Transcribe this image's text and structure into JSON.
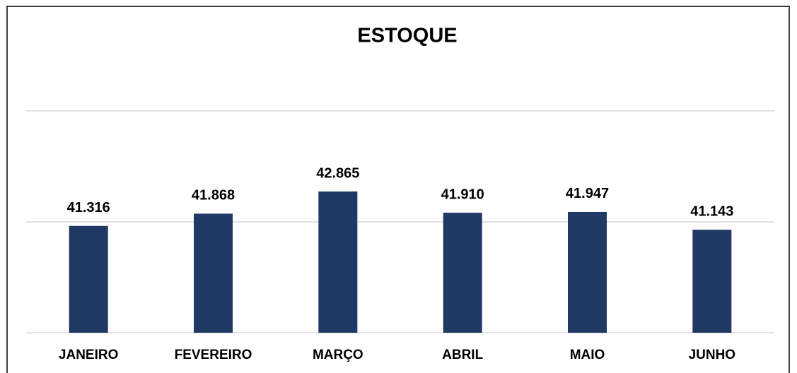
{
  "chart_data": {
    "type": "bar",
    "title": "ESTOQUE",
    "categories": [
      "JANEIRO",
      "FEVEREIRO",
      "MARÇO",
      "ABRIL",
      "MAIO",
      "JUNHO"
    ],
    "values": [
      41316,
      41868,
      42865,
      41910,
      41947,
      41143
    ],
    "value_labels": [
      "41.316",
      "41.868",
      "42.865",
      "41.910",
      "41.947",
      "41.143"
    ],
    "color": "#203864",
    "ylim": [
      36500,
      46500
    ],
    "yticks": [
      36500,
      41500,
      46500
    ],
    "grid": true
  }
}
